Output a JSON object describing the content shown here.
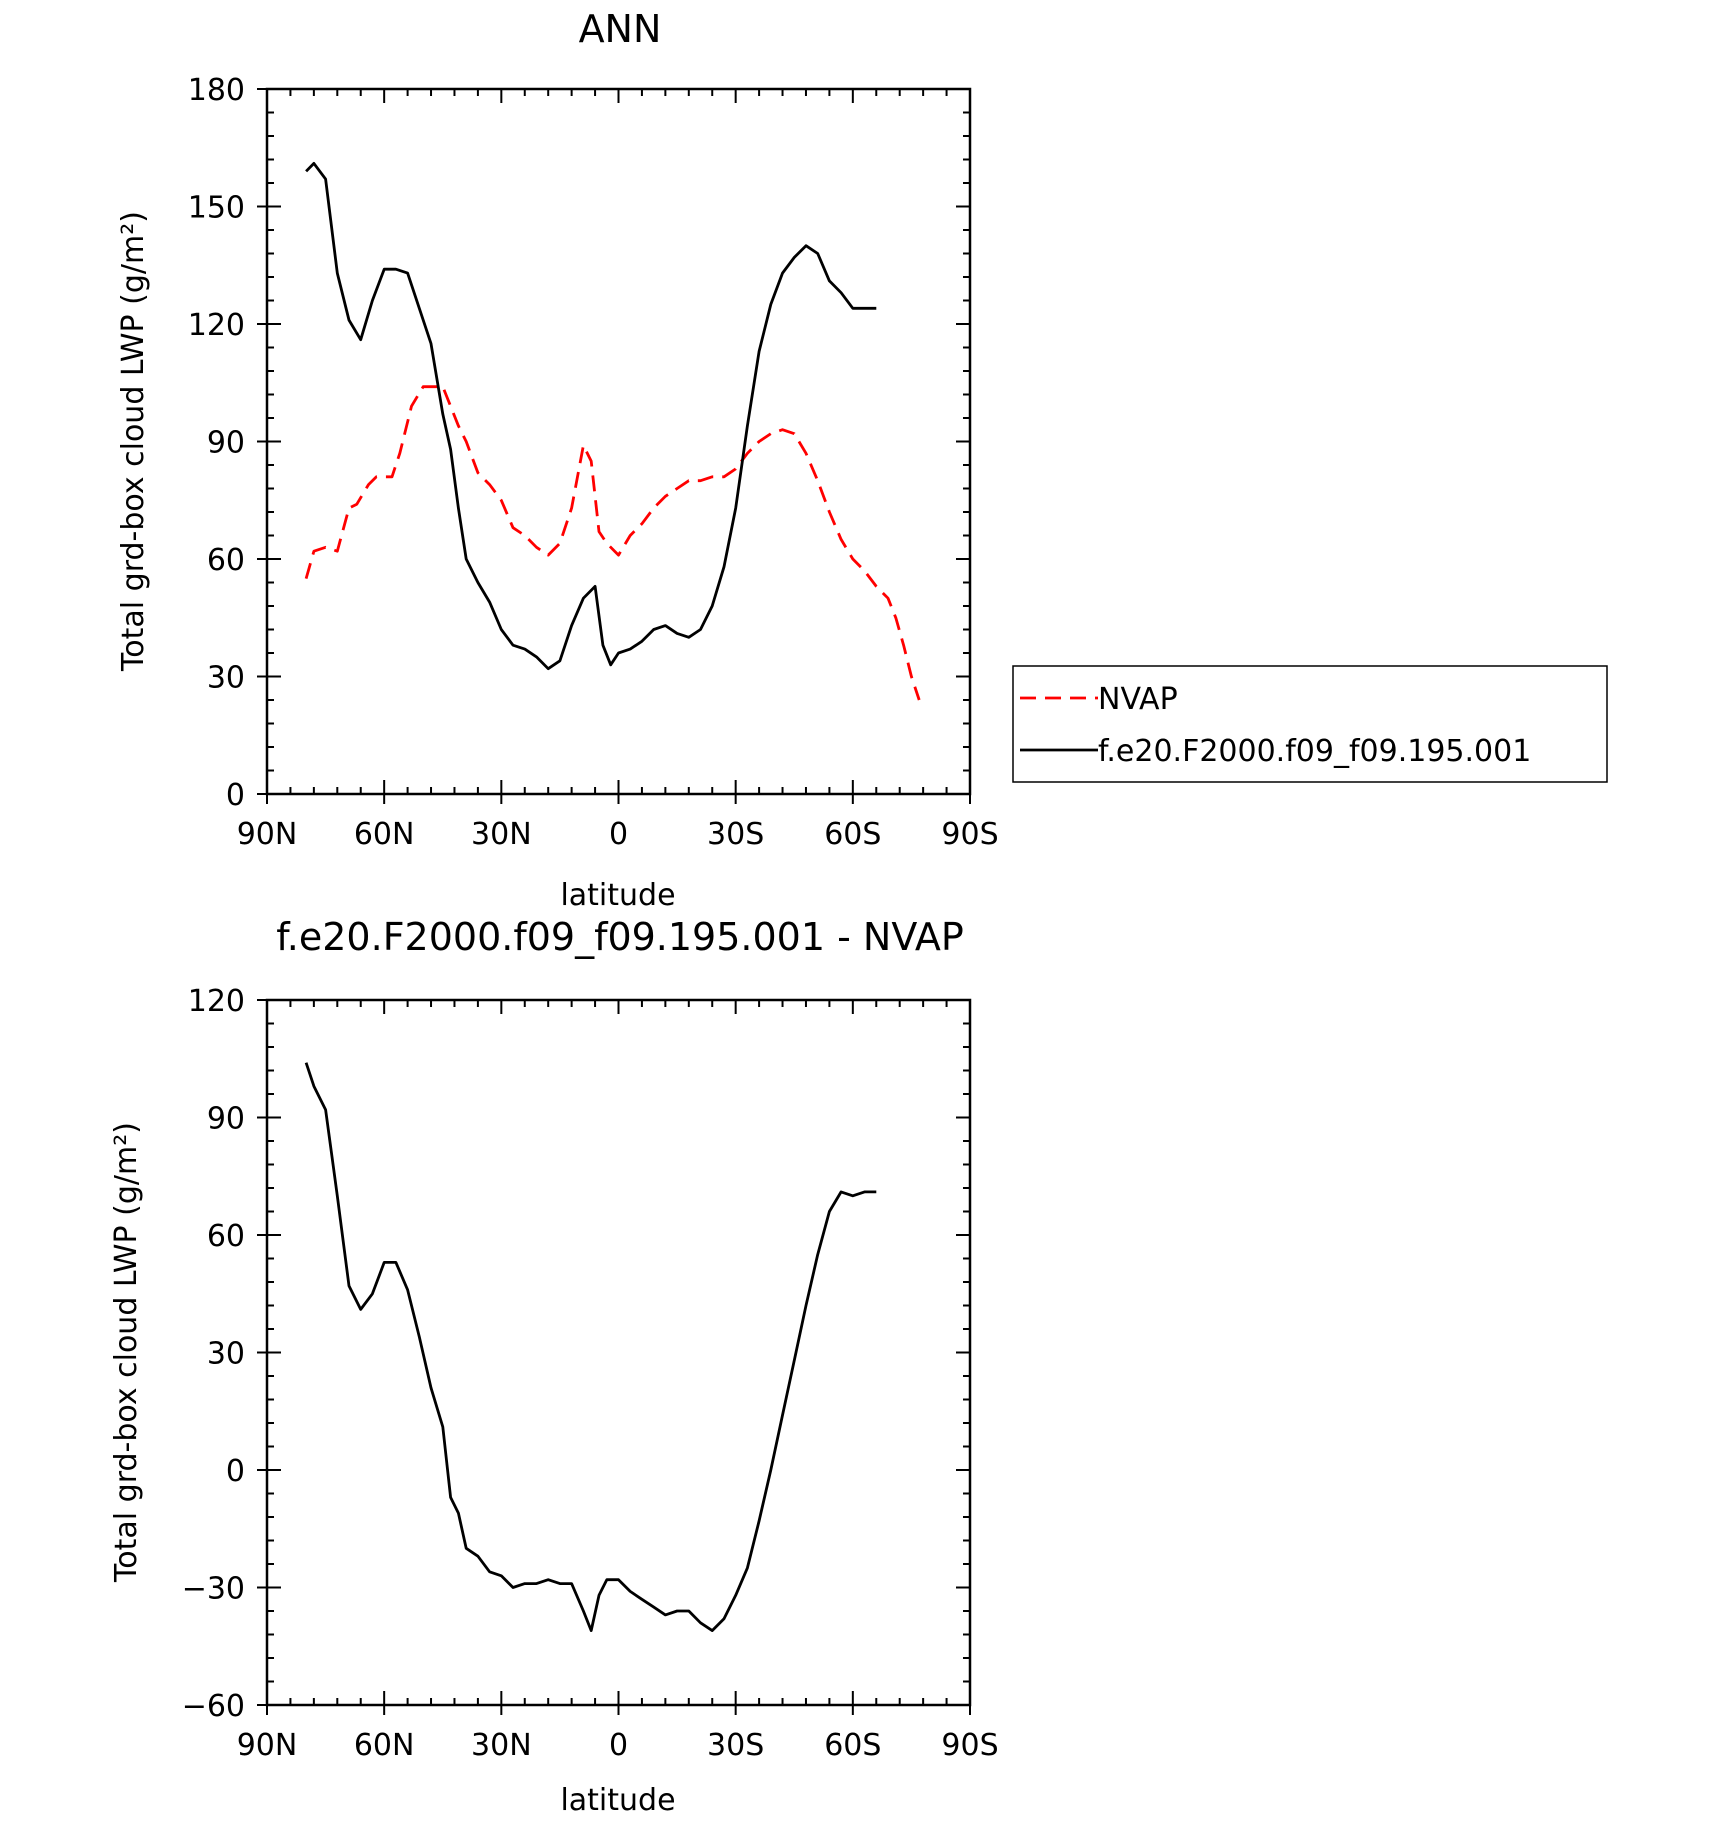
{
  "chart_data": [
    {
      "type": "line",
      "title": "ANN",
      "xlabel": "latitude",
      "ylabel": "Total grd-box cloud LWP (g/m²)",
      "x_ticks": [
        -90,
        -60,
        -30,
        0,
        30,
        60,
        90
      ],
      "x_tick_labels": [
        "90N",
        "60N",
        "30N",
        "0",
        "30S",
        "60S",
        "90S"
      ],
      "xlim": [
        -90,
        90
      ],
      "y_ticks": [
        0,
        30,
        60,
        90,
        120,
        150,
        180
      ],
      "y_tick_labels": [
        "0",
        "30",
        "60",
        "90",
        "120",
        "150",
        "180"
      ],
      "ylim": [
        0,
        180
      ],
      "legend": {
        "placement": "right",
        "entries": [
          "NVAP",
          "f.e20.F2000.f09_f09.195.001"
        ]
      },
      "series": [
        {
          "name": "NVAP",
          "color": "#ff0000",
          "dash": true,
          "x": [
            -80,
            -78,
            -75,
            -72,
            -69,
            -67,
            -64,
            -62,
            -58,
            -56,
            -53,
            -50,
            -47,
            -45,
            -43,
            -41,
            -39,
            -36,
            -33,
            -30,
            -27,
            -24,
            -21,
            -18,
            -15,
            -12,
            -9,
            -7,
            -5,
            -3,
            0,
            3,
            6,
            9,
            12,
            15,
            18,
            21,
            24,
            27,
            30,
            33,
            36,
            39,
            42,
            45,
            48,
            51,
            54,
            57,
            60,
            63,
            66,
            69,
            71,
            73,
            75,
            77
          ],
          "y": [
            55,
            62,
            63,
            62,
            73,
            74,
            79,
            81,
            81,
            87,
            99,
            104,
            104,
            104,
            99,
            94,
            90,
            82,
            79,
            75,
            68,
            66,
            63,
            61,
            64,
            73,
            89,
            85,
            67,
            64,
            61,
            66,
            69,
            73,
            76,
            78,
            80,
            80,
            81,
            81,
            83,
            87,
            90,
            92,
            93,
            92,
            87,
            80,
            72,
            65,
            60,
            57,
            53,
            50,
            45,
            38,
            30,
            24
          ]
        },
        {
          "name": "f.e20.F2000.f09_f09.195.001",
          "color": "#000000",
          "dash": false,
          "x": [
            -80,
            -78,
            -75,
            -72,
            -69,
            -66,
            -63,
            -60,
            -57,
            -54,
            -51,
            -48,
            -45,
            -43,
            -41,
            -39,
            -36,
            -33,
            -30,
            -27,
            -24,
            -21,
            -18,
            -15,
            -12,
            -9,
            -6,
            -4,
            -2,
            0,
            3,
            6,
            9,
            12,
            15,
            18,
            21,
            24,
            27,
            30,
            33,
            36,
            39,
            42,
            45,
            48,
            51,
            54,
            57,
            60,
            63,
            66
          ],
          "y": [
            159,
            161,
            157,
            133,
            121,
            116,
            126,
            134,
            134,
            133,
            124,
            115,
            97,
            88,
            73,
            60,
            54,
            49,
            42,
            38,
            37,
            35,
            32,
            34,
            43,
            50,
            53,
            38,
            33,
            36,
            37,
            39,
            42,
            43,
            41,
            40,
            42,
            48,
            58,
            73,
            94,
            113,
            125,
            133,
            137,
            140,
            138,
            131,
            128,
            124,
            124,
            124
          ]
        }
      ]
    },
    {
      "type": "line",
      "title": "f.e20.F2000.f09_f09.195.001  -  NVAP",
      "xlabel": "latitude",
      "ylabel": "Total grd-box cloud LWP (g/m²)",
      "x_ticks": [
        -90,
        -60,
        -30,
        0,
        30,
        60,
        90
      ],
      "x_tick_labels": [
        "90N",
        "60N",
        "30N",
        "0",
        "30S",
        "60S",
        "90S"
      ],
      "xlim": [
        -90,
        90
      ],
      "y_ticks": [
        -60,
        -30,
        0,
        30,
        60,
        90,
        120
      ],
      "y_tick_labels": [
        "-60",
        "-30",
        "0",
        "30",
        "60",
        "90",
        "120"
      ],
      "ylim": [
        -60,
        120
      ],
      "series": [
        {
          "color": "#000000",
          "dash": false,
          "x": [
            -80,
            -78,
            -75,
            -72,
            -69,
            -66,
            -63,
            -60,
            -57,
            -54,
            -51,
            -48,
            -45,
            -43,
            -41,
            -39,
            -36,
            -33,
            -30,
            -27,
            -24,
            -21,
            -18,
            -15,
            -12,
            -9,
            -7,
            -5,
            -3,
            0,
            3,
            6,
            9,
            12,
            15,
            18,
            21,
            24,
            27,
            30,
            33,
            36,
            39,
            42,
            45,
            48,
            51,
            54,
            57,
            60,
            63,
            66
          ],
          "y": [
            104,
            98,
            92,
            70,
            47,
            41,
            45,
            53,
            53,
            46,
            34,
            21,
            11,
            -7,
            -11,
            -20,
            -22,
            -26,
            -27,
            -30,
            -29,
            -29,
            -28,
            -29,
            -29,
            -36,
            -41,
            -32,
            -28,
            -28,
            -31,
            -33,
            -35,
            -37,
            -36,
            -36,
            -39,
            -41,
            -38,
            -32,
            -25,
            -13,
            0,
            14,
            28,
            42,
            55,
            66,
            71,
            70,
            71,
            71
          ]
        }
      ]
    }
  ]
}
